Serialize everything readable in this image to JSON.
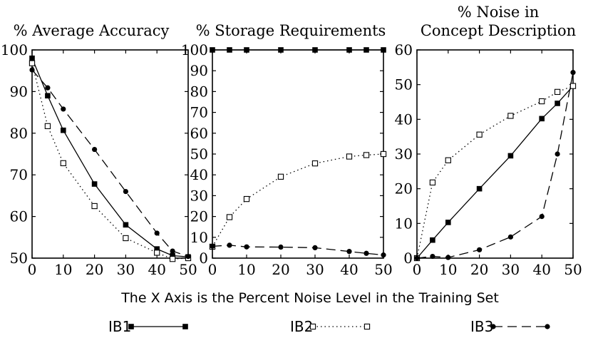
{
  "caption": "The X Axis is the Percent Noise Level in the Training Set",
  "legend": [
    {
      "name": "IB1",
      "marker": "filled-square",
      "line": "solid"
    },
    {
      "name": "IB2",
      "marker": "open-square",
      "line": "dotted"
    },
    {
      "name": "IB3",
      "marker": "filled-circle",
      "line": "dashed"
    }
  ],
  "chart_data": [
    {
      "type": "line",
      "title": [
        "% Average Accuracy"
      ],
      "xlabel": "",
      "ylabel": "",
      "xlim": [
        0,
        50
      ],
      "ylim": [
        50,
        100
      ],
      "xticks": [
        0,
        10,
        20,
        30,
        40,
        50
      ],
      "yticks": [
        50,
        60,
        70,
        80,
        90,
        100
      ],
      "grid": false,
      "x": [
        0,
        5,
        10,
        20,
        30,
        40,
        45,
        50
      ],
      "series": [
        {
          "name": "IB1",
          "values": [
            98.0,
            89.0,
            80.7,
            67.8,
            58.0,
            52.2,
            50.6,
            50.3
          ]
        },
        {
          "name": "IB2",
          "values": [
            96.8,
            81.7,
            72.8,
            62.5,
            54.8,
            51.3,
            49.8,
            50.0
          ]
        },
        {
          "name": "IB3",
          "values": [
            95.2,
            90.9,
            85.8,
            76.1,
            66.0,
            56.0,
            51.7,
            50.4
          ]
        }
      ]
    },
    {
      "type": "line",
      "title": [
        "% Storage Requirements"
      ],
      "xlabel": "",
      "ylabel": "",
      "xlim": [
        0,
        50
      ],
      "ylim": [
        0,
        100
      ],
      "xticks": [
        0,
        10,
        20,
        30,
        40,
        50
      ],
      "yticks": [
        0,
        10,
        20,
        30,
        40,
        50,
        60,
        70,
        80,
        90,
        100
      ],
      "grid": false,
      "x": [
        0,
        5,
        10,
        20,
        30,
        40,
        45,
        50
      ],
      "series": [
        {
          "name": "IB1",
          "values": [
            100,
            100,
            100,
            100,
            100,
            100,
            100,
            100
          ]
        },
        {
          "name": "IB2",
          "values": [
            5.5,
            19.7,
            28.4,
            39.1,
            45.5,
            48.8,
            49.5,
            50.0
          ]
        },
        {
          "name": "IB3",
          "values": [
            5.7,
            6.2,
            5.4,
            5.3,
            5.0,
            3.2,
            2.3,
            1.5
          ]
        }
      ]
    },
    {
      "type": "line",
      "title": [
        "% Noise in",
        "Concept Description"
      ],
      "xlabel": "",
      "ylabel": "",
      "xlim": [
        0,
        50
      ],
      "ylim": [
        0,
        60
      ],
      "xticks": [
        0,
        10,
        20,
        30,
        40,
        50
      ],
      "yticks": [
        0,
        10,
        20,
        30,
        40,
        50,
        60
      ],
      "grid": false,
      "x": [
        0,
        5,
        10,
        20,
        30,
        40,
        45,
        50
      ],
      "series": [
        {
          "name": "IB1",
          "values": [
            0,
            5.2,
            10.3,
            20.0,
            29.5,
            40.2,
            44.6,
            49.6
          ]
        },
        {
          "name": "IB2",
          "values": [
            0,
            21.8,
            28.2,
            35.6,
            41.0,
            45.2,
            47.9,
            49.6
          ]
        },
        {
          "name": "IB3",
          "values": [
            0,
            0.5,
            0.2,
            2.4,
            6.1,
            12.0,
            30.0,
            53.5
          ]
        }
      ]
    }
  ]
}
